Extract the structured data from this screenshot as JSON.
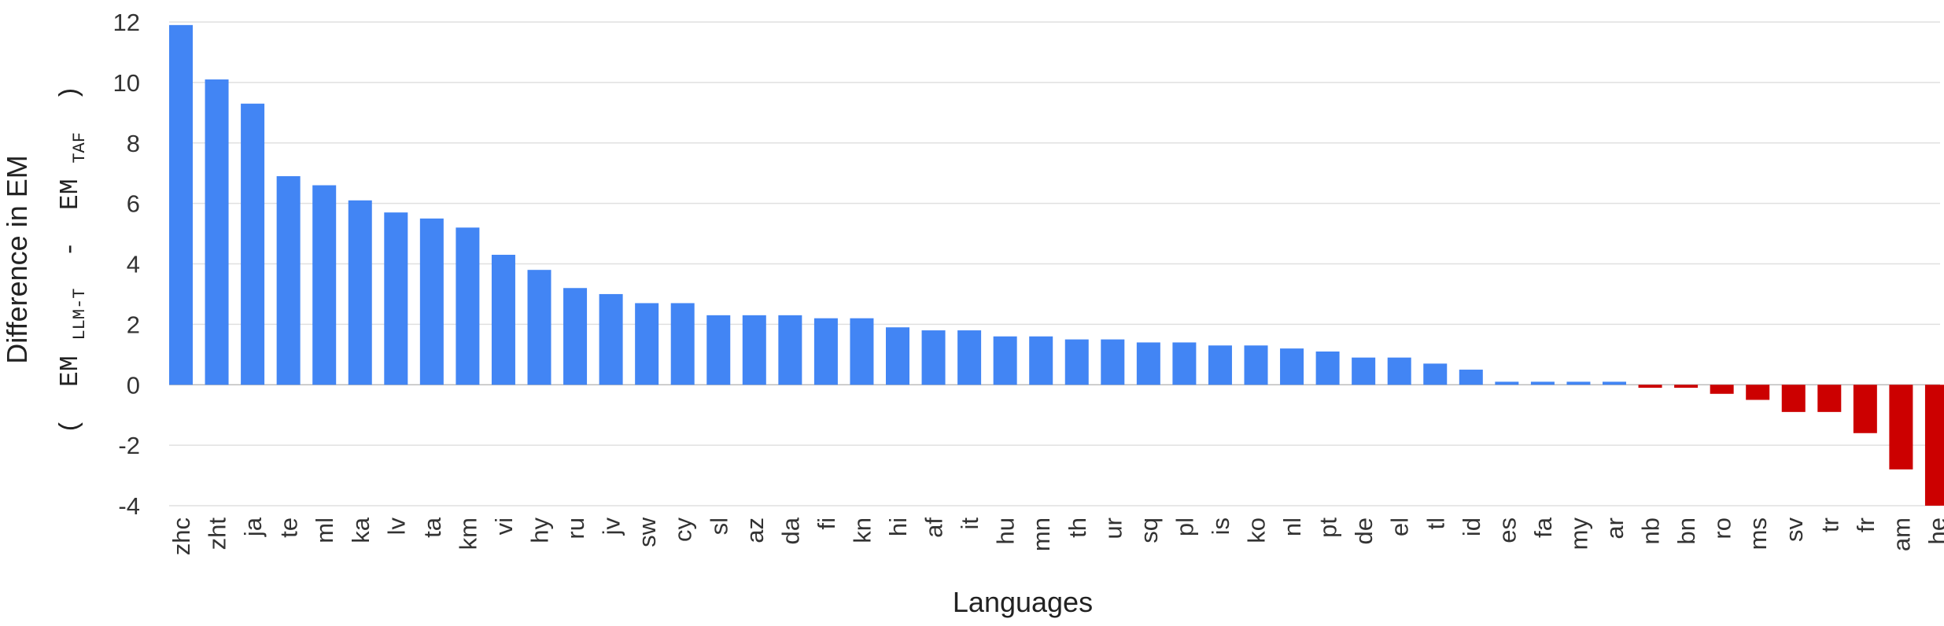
{
  "chart_data": {
    "type": "bar",
    "xlabel": "Languages",
    "ylabel": "Difference in EM",
    "ylabel_formula": {
      "open": "(",
      "term1_base": "EM",
      "term1_sub": "LLM-T",
      "minus": "-",
      "term2_base": "EM",
      "term2_sub": "TAF",
      "close": ")"
    },
    "ylim": [
      -4,
      12
    ],
    "yticks": [
      12,
      10,
      8,
      6,
      4,
      2,
      0,
      -2,
      -4
    ],
    "grid": true,
    "colors": {
      "positive": "#4285f4",
      "negative": "#cc0000"
    },
    "categories": [
      "zhc",
      "zht",
      "ja",
      "te",
      "ml",
      "ka",
      "lv",
      "ta",
      "km",
      "vi",
      "hy",
      "ru",
      "jv",
      "sw",
      "cy",
      "sl",
      "az",
      "da",
      "fi",
      "kn",
      "hi",
      "af",
      "it",
      "hu",
      "mn",
      "th",
      "ur",
      "sq",
      "pl",
      "is",
      "ko",
      "nl",
      "pt",
      "de",
      "el",
      "tl",
      "id",
      "es",
      "fa",
      "my",
      "ar",
      "nb",
      "bn",
      "ro",
      "ms",
      "sv",
      "tr",
      "fr",
      "am",
      "he"
    ],
    "values": [
      11.9,
      10.1,
      9.3,
      6.9,
      6.6,
      6.1,
      5.7,
      5.5,
      5.2,
      4.3,
      3.8,
      3.2,
      3.0,
      2.7,
      2.7,
      2.3,
      2.3,
      2.3,
      2.2,
      2.2,
      1.9,
      1.8,
      1.8,
      1.6,
      1.6,
      1.5,
      1.5,
      1.4,
      1.4,
      1.3,
      1.3,
      1.2,
      1.1,
      0.9,
      0.9,
      0.7,
      0.5,
      0.1,
      0.1,
      0.1,
      0.1,
      -0.1,
      -0.1,
      -0.3,
      -0.5,
      -0.9,
      -0.9,
      -1.6,
      -2.8,
      -4.0
    ]
  }
}
